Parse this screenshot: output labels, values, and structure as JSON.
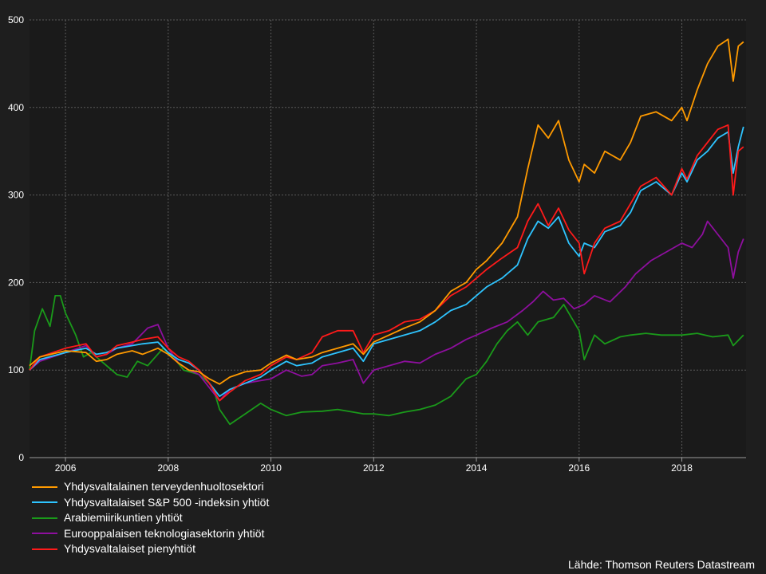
{
  "chart_data": {
    "type": "line",
    "title": "",
    "xlabel": "",
    "ylabel": "",
    "xlim": [
      2005.3,
      2019.25
    ],
    "ylim": [
      0,
      500
    ],
    "y_ticks": [
      0,
      100,
      200,
      300,
      400,
      500
    ],
    "x_ticks": [
      2006,
      2008,
      2010,
      2012,
      2014,
      2016,
      2018
    ],
    "grid": true,
    "legend_placement": "bottom-left",
    "source": "Lähde: Thomson Reuters Datastream",
    "series": [
      {
        "name": "Yhdysvaltalainen terveydenhuoltosektori",
        "color": "#ff9a00",
        "x": [
          2005.3,
          2005.5,
          2006.0,
          2006.4,
          2006.6,
          2006.8,
          2007.0,
          2007.3,
          2007.5,
          2007.8,
          2008.0,
          2008.2,
          2008.4,
          2008.6,
          2008.8,
          2009.0,
          2009.2,
          2009.5,
          2009.8,
          2010.0,
          2010.3,
          2010.5,
          2010.8,
          2011.0,
          2011.3,
          2011.6,
          2011.8,
          2012.0,
          2012.3,
          2012.6,
          2012.9,
          2013.2,
          2013.5,
          2013.8,
          2014.0,
          2014.2,
          2014.5,
          2014.8,
          2015.0,
          2015.2,
          2015.4,
          2015.6,
          2015.8,
          2016.0,
          2016.1,
          2016.3,
          2016.5,
          2016.8,
          2017.0,
          2017.2,
          2017.5,
          2017.8,
          2018.0,
          2018.1,
          2018.3,
          2018.5,
          2018.7,
          2018.9,
          2019.0,
          2019.1,
          2019.2
        ],
        "y": [
          105,
          115,
          122,
          120,
          110,
          112,
          118,
          122,
          118,
          125,
          118,
          108,
          100,
          98,
          90,
          84,
          92,
          98,
          100,
          108,
          117,
          112,
          115,
          120,
          125,
          130,
          118,
          132,
          140,
          148,
          155,
          168,
          190,
          200,
          215,
          225,
          245,
          275,
          330,
          380,
          365,
          385,
          340,
          315,
          335,
          325,
          350,
          340,
          360,
          390,
          395,
          385,
          400,
          385,
          420,
          450,
          470,
          478,
          430,
          470,
          475
        ]
      },
      {
        "name": "Yhdysvaltalaiset S&P 500 -indeksin yhtiöt",
        "color": "#2ec4ff",
        "x": [
          2005.3,
          2005.5,
          2006.0,
          2006.4,
          2006.6,
          2006.8,
          2007.0,
          2007.3,
          2007.5,
          2007.8,
          2008.0,
          2008.2,
          2008.4,
          2008.6,
          2008.8,
          2009.0,
          2009.2,
          2009.5,
          2009.8,
          2010.0,
          2010.3,
          2010.5,
          2010.8,
          2011.0,
          2011.3,
          2011.6,
          2011.8,
          2012.0,
          2012.3,
          2012.6,
          2012.9,
          2013.2,
          2013.5,
          2013.8,
          2014.0,
          2014.2,
          2014.5,
          2014.8,
          2015.0,
          2015.2,
          2015.4,
          2015.6,
          2015.8,
          2016.0,
          2016.1,
          2016.3,
          2016.5,
          2016.8,
          2017.0,
          2017.2,
          2017.5,
          2017.8,
          2018.0,
          2018.1,
          2018.3,
          2018.5,
          2018.7,
          2018.9,
          2019.0,
          2019.1,
          2019.2
        ],
        "y": [
          100,
          112,
          120,
          125,
          118,
          120,
          125,
          128,
          130,
          132,
          120,
          112,
          108,
          100,
          85,
          70,
          78,
          85,
          92,
          100,
          110,
          105,
          108,
          115,
          120,
          125,
          110,
          130,
          135,
          140,
          145,
          155,
          168,
          175,
          185,
          195,
          205,
          220,
          250,
          270,
          262,
          275,
          245,
          230,
          245,
          240,
          258,
          265,
          280,
          305,
          315,
          300,
          325,
          315,
          340,
          350,
          365,
          372,
          325,
          355,
          378
        ]
      },
      {
        "name": "Arabiemiirikuntien yhtiöt",
        "color": "#1a9a1a",
        "x": [
          2005.3,
          2005.4,
          2005.55,
          2005.7,
          2005.8,
          2005.9,
          2006.0,
          2006.2,
          2006.35,
          2006.5,
          2006.8,
          2007.0,
          2007.2,
          2007.4,
          2007.6,
          2007.9,
          2008.1,
          2008.3,
          2008.6,
          2008.8,
          2008.9,
          2009.0,
          2009.2,
          2009.5,
          2009.8,
          2010.0,
          2010.3,
          2010.6,
          2011.0,
          2011.3,
          2011.6,
          2011.8,
          2012.0,
          2012.3,
          2012.6,
          2012.9,
          2013.2,
          2013.5,
          2013.8,
          2014.0,
          2014.2,
          2014.4,
          2014.6,
          2014.8,
          2015.0,
          2015.2,
          2015.5,
          2015.7,
          2015.9,
          2016.0,
          2016.1,
          2016.3,
          2016.5,
          2016.8,
          2017.0,
          2017.3,
          2017.6,
          2018.0,
          2018.3,
          2018.6,
          2018.9,
          2019.0,
          2019.2
        ],
        "y": [
          100,
          145,
          170,
          150,
          185,
          185,
          165,
          140,
          115,
          120,
          105,
          95,
          92,
          110,
          105,
          125,
          115,
          100,
          95,
          85,
          75,
          55,
          38,
          50,
          62,
          55,
          48,
          52,
          53,
          55,
          52,
          50,
          50,
          48,
          52,
          55,
          60,
          70,
          90,
          95,
          110,
          130,
          145,
          155,
          140,
          155,
          160,
          175,
          155,
          145,
          112,
          140,
          130,
          138,
          140,
          142,
          140,
          140,
          142,
          138,
          140,
          128,
          140
        ]
      },
      {
        "name": "Eurooppalaisen teknologiasektorin yhtiöt",
        "color": "#8e0f9e",
        "x": [
          2005.3,
          2005.5,
          2006.0,
          2006.4,
          2006.6,
          2006.8,
          2007.0,
          2007.3,
          2007.6,
          2007.8,
          2008.0,
          2008.2,
          2008.4,
          2008.6,
          2008.8,
          2009.0,
          2009.2,
          2009.5,
          2009.8,
          2010.0,
          2010.3,
          2010.6,
          2010.8,
          2011.0,
          2011.3,
          2011.6,
          2011.8,
          2012.0,
          2012.3,
          2012.6,
          2012.9,
          2013.2,
          2013.5,
          2013.8,
          2014.0,
          2014.3,
          2014.6,
          2014.9,
          2015.1,
          2015.3,
          2015.5,
          2015.7,
          2015.9,
          2016.1,
          2016.3,
          2016.6,
          2016.9,
          2017.1,
          2017.4,
          2017.7,
          2018.0,
          2018.2,
          2018.4,
          2018.5,
          2018.7,
          2018.9,
          2019.0,
          2019.1,
          2019.2
        ],
        "y": [
          100,
          110,
          120,
          128,
          115,
          118,
          125,
          130,
          148,
          152,
          125,
          108,
          100,
          95,
          80,
          65,
          78,
          85,
          88,
          90,
          100,
          93,
          95,
          105,
          108,
          112,
          85,
          100,
          105,
          110,
          108,
          118,
          125,
          135,
          140,
          148,
          155,
          168,
          178,
          190,
          180,
          182,
          170,
          175,
          185,
          178,
          195,
          210,
          225,
          235,
          245,
          240,
          255,
          270,
          255,
          240,
          205,
          235,
          250
        ]
      },
      {
        "name": "Yhdysvaltalaiset pienyhtiöt",
        "color": "#ff1a1a",
        "x": [
          2005.3,
          2005.5,
          2006.0,
          2006.4,
          2006.6,
          2006.8,
          2007.0,
          2007.3,
          2007.5,
          2007.8,
          2008.0,
          2008.2,
          2008.4,
          2008.6,
          2008.8,
          2009.0,
          2009.2,
          2009.5,
          2009.8,
          2010.0,
          2010.3,
          2010.5,
          2010.8,
          2011.0,
          2011.3,
          2011.6,
          2011.8,
          2012.0,
          2012.3,
          2012.6,
          2012.9,
          2013.2,
          2013.5,
          2013.8,
          2014.0,
          2014.2,
          2014.5,
          2014.8,
          2015.0,
          2015.2,
          2015.4,
          2015.6,
          2015.8,
          2016.0,
          2016.1,
          2016.3,
          2016.5,
          2016.8,
          2017.0,
          2017.2,
          2017.5,
          2017.8,
          2018.0,
          2018.1,
          2018.3,
          2018.5,
          2018.7,
          2018.9,
          2019.0,
          2019.1,
          2019.2
        ],
        "y": [
          100,
          115,
          125,
          130,
          115,
          118,
          128,
          132,
          135,
          138,
          125,
          115,
          110,
          100,
          85,
          65,
          75,
          88,
          95,
          105,
          115,
          112,
          120,
          138,
          145,
          145,
          120,
          140,
          145,
          155,
          158,
          168,
          185,
          195,
          205,
          215,
          228,
          240,
          270,
          290,
          265,
          285,
          260,
          245,
          210,
          245,
          262,
          270,
          290,
          310,
          320,
          300,
          330,
          318,
          345,
          360,
          375,
          380,
          300,
          350,
          355
        ]
      }
    ]
  }
}
